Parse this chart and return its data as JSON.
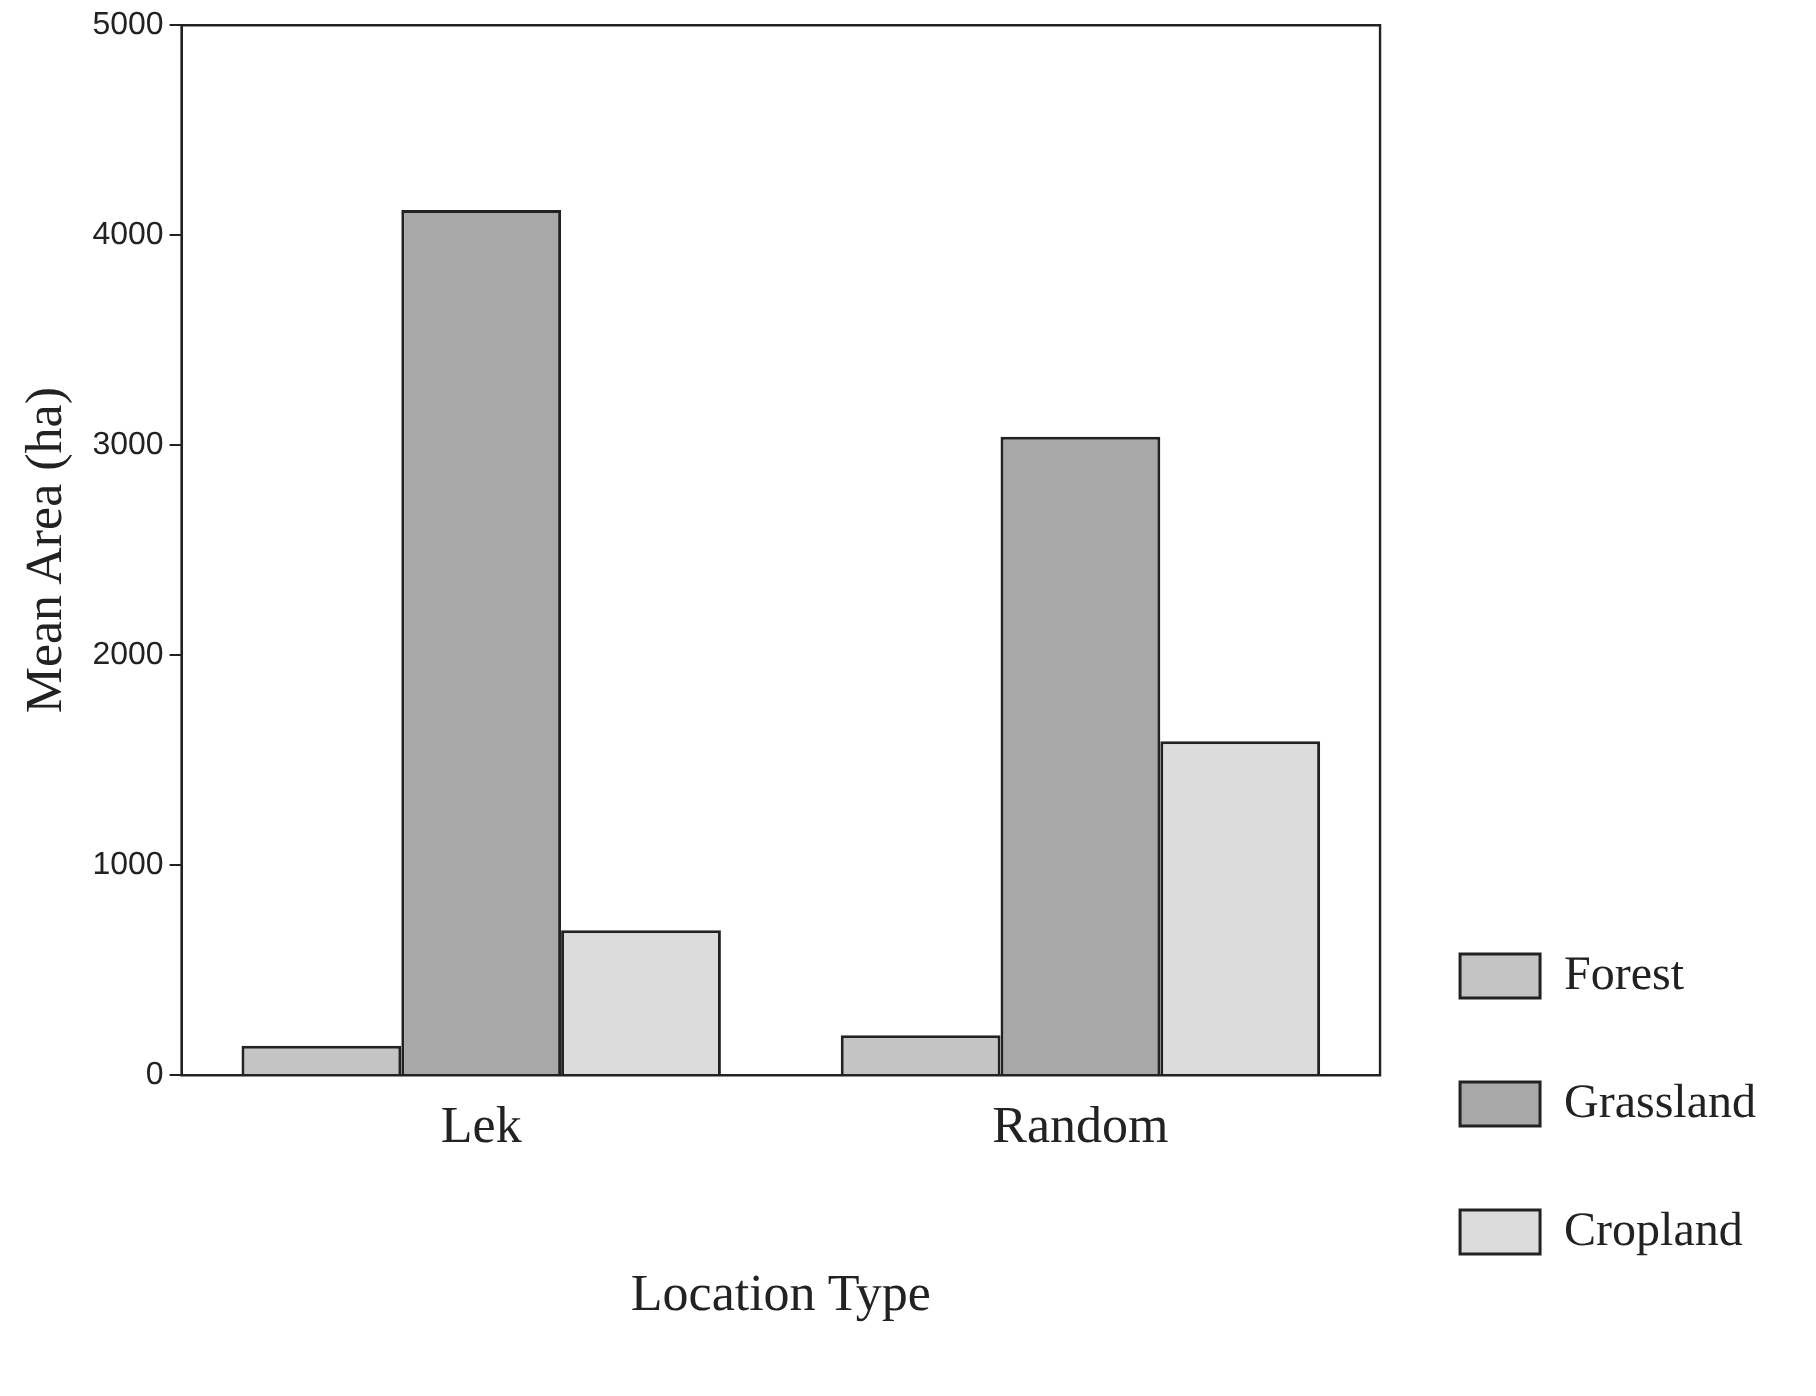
{
  "chart_data": {
    "type": "bar",
    "xlabel": "Location Type",
    "ylabel": "Mean Area (ha)",
    "categories": [
      "Lek",
      "Random"
    ],
    "series": [
      {
        "name": "Forest",
        "color": "#c4c4c4",
        "values": [
          140,
          190
        ]
      },
      {
        "name": "Grassland",
        "color": "#a8a8a8",
        "values": [
          4120,
          3040
        ]
      },
      {
        "name": "Cropland",
        "color": "#dcdcdc",
        "values": [
          690,
          1590
        ]
      }
    ],
    "ylim": [
      0,
      5000
    ],
    "yticks": [
      0,
      1000,
      2000,
      3000,
      4000,
      5000
    ],
    "grid": false,
    "legend": "right"
  }
}
